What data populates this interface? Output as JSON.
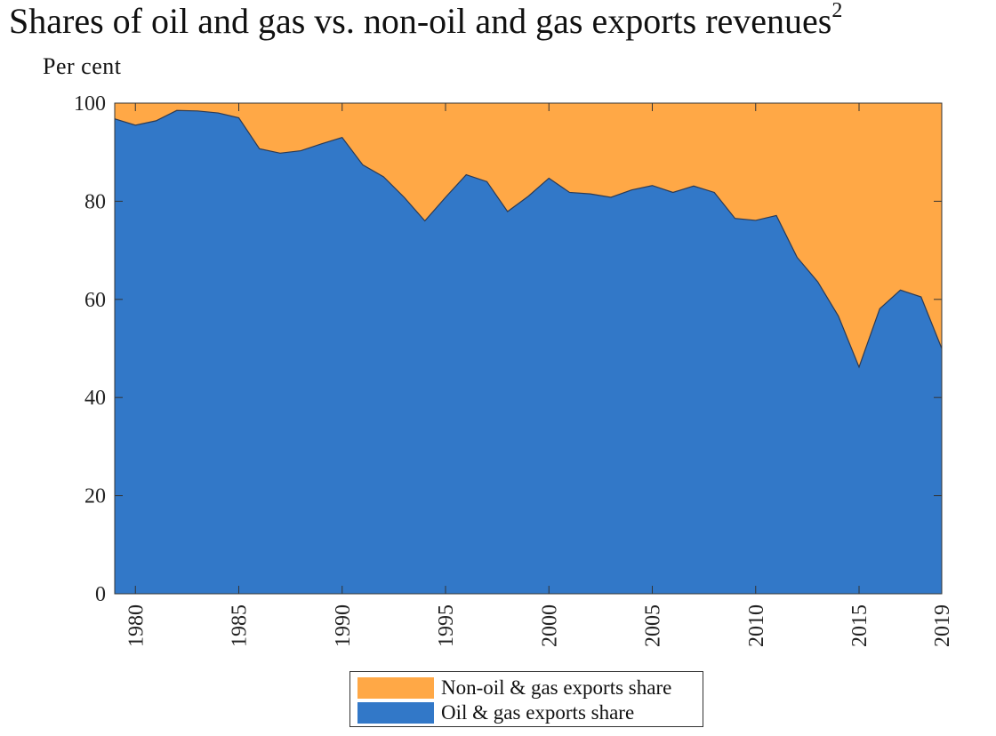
{
  "title": "Shares of oil and gas vs. non-oil and gas exports revenues",
  "title_footnote": "2",
  "chart_data": {
    "type": "area",
    "stacked": true,
    "title": "Shares of oil and gas vs. non-oil and gas exports revenues",
    "ylabel": "Per cent",
    "xlabel": "",
    "xlim": [
      1979,
      2019
    ],
    "ylim": [
      0,
      100
    ],
    "x_ticks": [
      1980,
      1985,
      1990,
      1995,
      2000,
      2005,
      2010,
      2015,
      2019
    ],
    "y_ticks": [
      0,
      20,
      40,
      60,
      80,
      100
    ],
    "legend_position": "bottom-center",
    "x": [
      1979,
      1980,
      1981,
      1982,
      1983,
      1984,
      1985,
      1986,
      1987,
      1988,
      1989,
      1990,
      1991,
      1992,
      1993,
      1994,
      1995,
      1996,
      1997,
      1998,
      1999,
      2000,
      2001,
      2002,
      2003,
      2004,
      2005,
      2006,
      2007,
      2008,
      2009,
      2010,
      2011,
      2012,
      2013,
      2014,
      2015,
      2016,
      2017,
      2018,
      2019
    ],
    "series": [
      {
        "name": "Oil & gas exports share",
        "color": "#3278C8",
        "values": [
          96.8,
          95.5,
          96.4,
          98.5,
          98.4,
          98.0,
          97.0,
          90.7,
          89.8,
          90.3,
          91.7,
          93.0,
          87.4,
          85.0,
          80.8,
          76.0,
          80.8,
          85.4,
          84.0,
          77.9,
          81.0,
          84.7,
          81.8,
          81.5,
          80.8,
          82.3,
          83.2,
          81.8,
          83.1,
          81.8,
          76.5,
          76.1,
          77.1,
          68.6,
          63.6,
          56.6,
          46.2,
          58.1,
          61.9,
          60.5,
          50.0
        ]
      },
      {
        "name": "Non-oil & gas exports share",
        "color": "#FFA846",
        "values": [
          3.2,
          4.5,
          3.6,
          1.5,
          1.6,
          2.0,
          3.0,
          9.3,
          10.2,
          9.7,
          8.3,
          7.0,
          12.6,
          15.0,
          19.2,
          24.0,
          19.2,
          14.6,
          16.0,
          22.1,
          19.0,
          15.3,
          18.2,
          18.5,
          19.2,
          17.7,
          16.8,
          18.2,
          16.9,
          18.2,
          23.5,
          23.9,
          22.9,
          31.4,
          36.4,
          43.4,
          53.8,
          41.9,
          38.1,
          39.5,
          50.0
        ]
      }
    ],
    "legend": [
      "Non-oil & gas exports share",
      "Oil & gas exports share"
    ]
  }
}
